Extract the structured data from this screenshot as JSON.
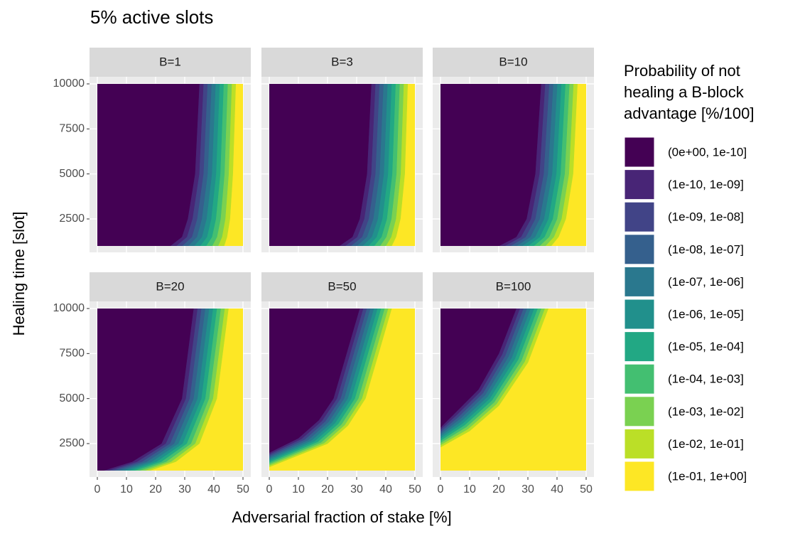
{
  "chart_data": {
    "type": "contour",
    "title": "5% active slots",
    "xlabel": "Adversarial fraction of stake [%]",
    "ylabel": "Healing time [slot]",
    "xlim": [
      0,
      50
    ],
    "ylim": [
      1000,
      10000
    ],
    "xticks": [
      0,
      10,
      20,
      30,
      40,
      50
    ],
    "yticks": [
      2500,
      5000,
      7500,
      10000
    ],
    "grid": true,
    "panels": [
      {
        "name": "B=1",
        "inner": [
          [
            25,
            1000
          ],
          [
            29,
            1500
          ],
          [
            31,
            2500
          ],
          [
            33.5,
            5000
          ],
          [
            35,
            10000
          ]
        ],
        "outer": [
          [
            43.5,
            1000
          ],
          [
            44.5,
            1500
          ],
          [
            45.5,
            2500
          ],
          [
            46.5,
            5000
          ],
          [
            47.5,
            10000
          ]
        ]
      },
      {
        "name": "B=3",
        "inner": [
          [
            24,
            1000
          ],
          [
            28.5,
            1500
          ],
          [
            31,
            2500
          ],
          [
            33.5,
            5000
          ],
          [
            35,
            10000
          ]
        ],
        "outer": [
          [
            42,
            1000
          ],
          [
            43.5,
            1500
          ],
          [
            45,
            2500
          ],
          [
            46.5,
            5000
          ],
          [
            47.5,
            10000
          ]
        ]
      },
      {
        "name": "B=10",
        "inner": [
          [
            20,
            1000
          ],
          [
            26,
            1500
          ],
          [
            29.5,
            2500
          ],
          [
            32.5,
            5000
          ],
          [
            34.5,
            10000
          ]
        ],
        "outer": [
          [
            38,
            1000
          ],
          [
            40.5,
            1500
          ],
          [
            43,
            2500
          ],
          [
            45.5,
            5000
          ],
          [
            47,
            10000
          ]
        ]
      },
      {
        "name": "B=20",
        "inner": [
          [
            2,
            1000
          ],
          [
            12,
            1500
          ],
          [
            22,
            2500
          ],
          [
            29,
            5000
          ],
          [
            33,
            10000
          ]
        ],
        "outer": [
          [
            18,
            1000
          ],
          [
            27,
            1500
          ],
          [
            35,
            2500
          ],
          [
            41,
            5000
          ],
          [
            45,
            10000
          ]
        ]
      },
      {
        "name": "B=50",
        "inner": [
          [
            0,
            2000
          ],
          [
            10,
            2800
          ],
          [
            17,
            3800
          ],
          [
            22,
            5000
          ],
          [
            31,
            10000
          ]
        ],
        "outer": [
          [
            0,
            1200
          ],
          [
            20,
            2500
          ],
          [
            27,
            3500
          ],
          [
            33,
            5000
          ],
          [
            42,
            10000
          ]
        ]
      },
      {
        "name": "B=100",
        "inner": [
          [
            0,
            3400
          ],
          [
            5,
            4200
          ],
          [
            13,
            5500
          ],
          [
            20,
            7500
          ],
          [
            26,
            10000
          ]
        ],
        "outer": [
          [
            0,
            2300
          ],
          [
            10,
            3200
          ],
          [
            20,
            4600
          ],
          [
            30,
            7000
          ],
          [
            37,
            10000
          ]
        ]
      }
    ],
    "legend": {
      "title": [
        "Probability of not",
        "healing a B-block",
        "advantage [%/100]"
      ],
      "items": [
        {
          "label": "(0e+00, 1e-10]",
          "color": "#440154"
        },
        {
          "label": "(1e-10, 1e-09]",
          "color": "#482576"
        },
        {
          "label": "(1e-09, 1e-08]",
          "color": "#414487"
        },
        {
          "label": "(1e-08, 1e-07]",
          "color": "#35608d"
        },
        {
          "label": "(1e-07, 1e-06]",
          "color": "#2a788e"
        },
        {
          "label": "(1e-06, 1e-05]",
          "color": "#21908c"
        },
        {
          "label": "(1e-05, 1e-04]",
          "color": "#22a884"
        },
        {
          "label": "(1e-04, 1e-03]",
          "color": "#43bf71"
        },
        {
          "label": "(1e-03, 1e-02]",
          "color": "#7ad151"
        },
        {
          "label": "(1e-02, 1e-01]",
          "color": "#bbdf27"
        },
        {
          "label": "(1e-01, 1e+00]",
          "color": "#fde725"
        }
      ]
    }
  }
}
